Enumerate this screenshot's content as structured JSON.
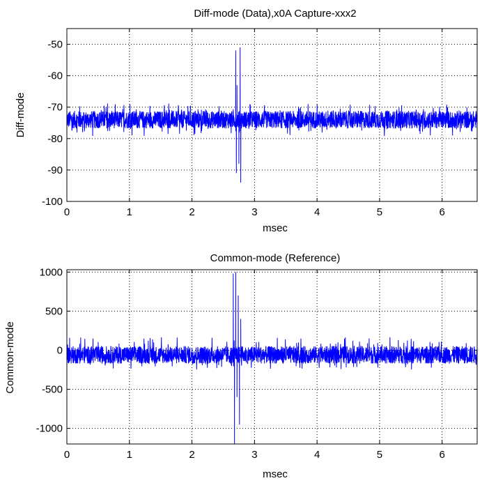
{
  "chart_data": [
    {
      "type": "line",
      "title": "Diff-mode (Data),x0A Capture-xxx2",
      "xlabel": "msec",
      "ylabel": "Diff-mode",
      "xlim": [
        0,
        6.56
      ],
      "ylim": [
        -100,
        -45
      ],
      "xticks": [
        0,
        1,
        2,
        3,
        4,
        5,
        6
      ],
      "yticks": [
        -100,
        -90,
        -80,
        -70,
        -60,
        -50
      ],
      "xtick_labels": [
        "0",
        "1",
        "2",
        "3",
        "4",
        "5",
        "6"
      ],
      "ytick_labels": [
        "-100",
        "-90",
        "-80",
        "-70",
        "-60",
        "-50"
      ],
      "grid": true,
      "series": [
        {
          "color": "#0000ff",
          "noise_band": {
            "center": -74,
            "low": -78,
            "high": -70
          },
          "spikes": [
            {
              "x": 2.7,
              "y": -52
            },
            {
              "x": 2.71,
              "y": -91
            },
            {
              "x": 2.72,
              "y": -63
            },
            {
              "x": 2.75,
              "y": -88
            },
            {
              "x": 2.77,
              "y": -51
            },
            {
              "x": 2.78,
              "y": -94
            }
          ]
        }
      ]
    },
    {
      "type": "line",
      "title": "Common-mode (Reference)",
      "xlabel": "msec",
      "ylabel": "Common-mode",
      "xlim": [
        0,
        6.56
      ],
      "ylim": [
        -1200,
        1030
      ],
      "xticks": [
        0,
        1,
        2,
        3,
        4,
        5,
        6
      ],
      "yticks": [
        -1000,
        -500,
        0,
        500,
        1000
      ],
      "xtick_labels": [
        "0",
        "1",
        "2",
        "3",
        "4",
        "5",
        "6"
      ],
      "ytick_labels": [
        "-1000",
        "-500",
        "0",
        "500",
        "1000"
      ],
      "grid": true,
      "series": [
        {
          "color": "#0000ff",
          "noise_band": {
            "center": -60,
            "low": -200,
            "high": 120
          },
          "spikes": [
            {
              "x": 2.66,
              "y": 980
            },
            {
              "x": 2.68,
              "y": -1200
            },
            {
              "x": 2.7,
              "y": 1000
            },
            {
              "x": 2.72,
              "y": -600
            },
            {
              "x": 2.74,
              "y": 700
            },
            {
              "x": 2.76,
              "y": -950
            },
            {
              "x": 2.78,
              "y": 400
            }
          ]
        }
      ]
    }
  ]
}
